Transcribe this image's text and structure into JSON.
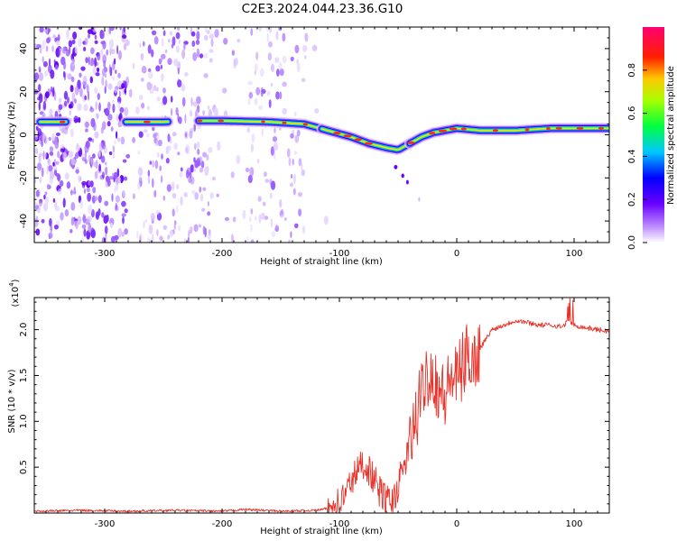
{
  "figure_title": "C2E3.2024.044.23.36.G10",
  "chart_data": [
    {
      "type": "heatmap",
      "title": "C2E3.2024.044.23.36.G10",
      "xlabel": "Height of straight line (km)",
      "ylabel": "Frequency (Hz)",
      "xlim": [
        -360,
        130
      ],
      "ylim": [
        -50,
        50
      ],
      "x_ticks": [
        -300,
        -200,
        -100,
        0,
        100
      ],
      "y_ticks": [
        -40,
        -20,
        0,
        20,
        40
      ],
      "colorbar": {
        "label": "Normalized spectral amplitude",
        "range": [
          0.0,
          1.0
        ],
        "ticks": [
          "0.0",
          "0.2",
          "0.4",
          "0.6",
          "0.8"
        ]
      },
      "ridge": {
        "x": [
          -355,
          -300,
          -280,
          -250,
          -220,
          -200,
          -160,
          -130,
          -110,
          -90,
          -75,
          -60,
          -50,
          -40,
          -30,
          -20,
          0,
          20,
          50,
          80,
          100,
          130
        ],
        "y": [
          6,
          6,
          6,
          6,
          6.5,
          6.5,
          6,
          5,
          2,
          -1,
          -4,
          -6,
          -7,
          -4,
          -1,
          1,
          3,
          2,
          2,
          3,
          3,
          3
        ]
      }
    },
    {
      "type": "line",
      "xlabel": "Height of straight line (km)",
      "ylabel": "SNR (10 * v/v)",
      "scale_label": "(x10",
      "scale_exponent": "4",
      "xlim": [
        -360,
        130
      ],
      "ylim": [
        0,
        2.35
      ],
      "x_ticks": [
        -300,
        -200,
        -100,
        0,
        100
      ],
      "y_ticks": [
        "0.5",
        "1.0",
        "1.5",
        "2.0"
      ],
      "series": [
        {
          "name": "SNR",
          "color": "#e8332b",
          "x": [
            -360,
            -320,
            -280,
            -240,
            -200,
            -180,
            -150,
            -120,
            -110,
            -100,
            -95,
            -90,
            -85,
            -80,
            -75,
            -70,
            -65,
            -60,
            -55,
            -50,
            -45,
            -40,
            -35,
            -30,
            -25,
            -20,
            -15,
            -10,
            -5,
            0,
            5,
            10,
            15,
            20,
            25,
            30,
            40,
            50,
            60,
            70,
            80,
            90,
            95,
            100,
            110,
            120,
            130
          ],
          "y": [
            0.02,
            0.03,
            0.02,
            0.03,
            0.02,
            0.04,
            0.02,
            0.03,
            0.05,
            0.12,
            0.2,
            0.35,
            0.45,
            0.55,
            0.48,
            0.35,
            0.22,
            0.15,
            0.1,
            0.3,
            0.5,
            0.75,
            1.0,
            1.3,
            1.55,
            1.5,
            1.35,
            1.25,
            1.5,
            1.45,
            1.6,
            1.75,
            1.65,
            1.8,
            1.9,
            2.0,
            2.05,
            2.1,
            2.08,
            2.05,
            2.05,
            2.03,
            2.1,
            2.05,
            2.02,
            2.0,
            1.98
          ]
        }
      ]
    }
  ]
}
